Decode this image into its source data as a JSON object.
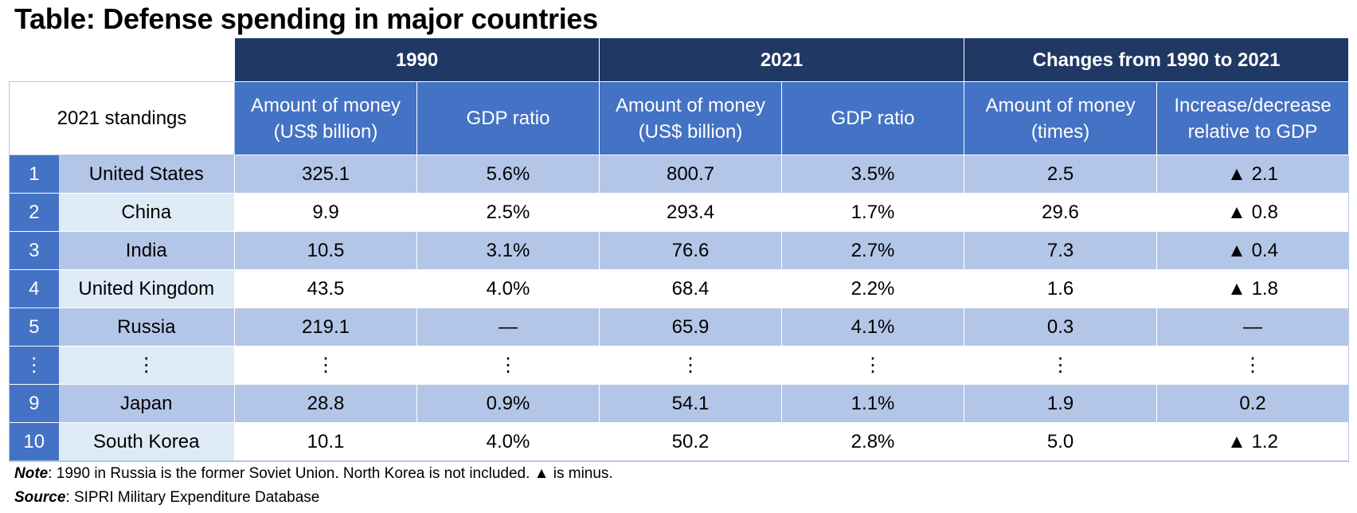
{
  "title": "Table: Defense spending in major countries",
  "header": {
    "standings_label": "2021 standings",
    "groups": [
      "1990",
      "2021",
      "Changes from 1990 to 2021"
    ],
    "subcolumns": [
      [
        "Amount of money",
        "(US$ billion)"
      ],
      [
        "GDP ratio"
      ],
      [
        "Amount of money",
        "(US$ billion)"
      ],
      [
        "GDP ratio"
      ],
      [
        "Amount of money",
        "(times)"
      ],
      [
        "Increase/decrease",
        "relative to GDP"
      ]
    ]
  },
  "rows": [
    {
      "rank": "1",
      "country": "United States",
      "m1990": "325.1",
      "g1990": "5.6%",
      "m2021": "800.7",
      "g2021": "3.5%",
      "times": "2.5",
      "gdp_change": "▲ 2.1"
    },
    {
      "rank": "2",
      "country": "China",
      "m1990": "9.9",
      "g1990": "2.5%",
      "m2021": "293.4",
      "g2021": "1.7%",
      "times": "29.6",
      "gdp_change": "▲ 0.8"
    },
    {
      "rank": "3",
      "country": "India",
      "m1990": "10.5",
      "g1990": "3.1%",
      "m2021": "76.6",
      "g2021": "2.7%",
      "times": "7.3",
      "gdp_change": "▲ 0.4"
    },
    {
      "rank": "4",
      "country": "United Kingdom",
      "m1990": "43.5",
      "g1990": "4.0%",
      "m2021": "68.4",
      "g2021": "2.2%",
      "times": "1.6",
      "gdp_change": "▲ 1.8"
    },
    {
      "rank": "5",
      "country": "Russia",
      "m1990": "219.1",
      "g1990": "—",
      "m2021": "65.9",
      "g2021": "4.1%",
      "times": "0.3",
      "gdp_change": "—"
    },
    {
      "rank": "⋮",
      "country": "⋮",
      "m1990": "⋮",
      "g1990": "⋮",
      "m2021": "⋮",
      "g2021": "⋮",
      "times": "⋮",
      "gdp_change": "⋮"
    },
    {
      "rank": "9",
      "country": "Japan",
      "m1990": "28.8",
      "g1990": "0.9%",
      "m2021": "54.1",
      "g2021": "1.1%",
      "times": "1.9",
      "gdp_change": "0.2"
    },
    {
      "rank": "10",
      "country": "South Korea",
      "m1990": "10.1",
      "g1990": "4.0%",
      "m2021": "50.2",
      "g2021": "2.8%",
      "times": "5.0",
      "gdp_change": "▲ 1.2"
    }
  ],
  "footer": {
    "note_label": "Note",
    "note_text": ": 1990 in Russia is the former Soviet Union. North Korea is not included. ▲ is minus.",
    "source_label": "Source",
    "source_text": ": SIPRI Military Expenditure Database"
  },
  "colors": {
    "group_header": "#203864",
    "sub_header": "#4472c4",
    "row_band": "#b4c6e7",
    "country_light": "#deebf7"
  }
}
